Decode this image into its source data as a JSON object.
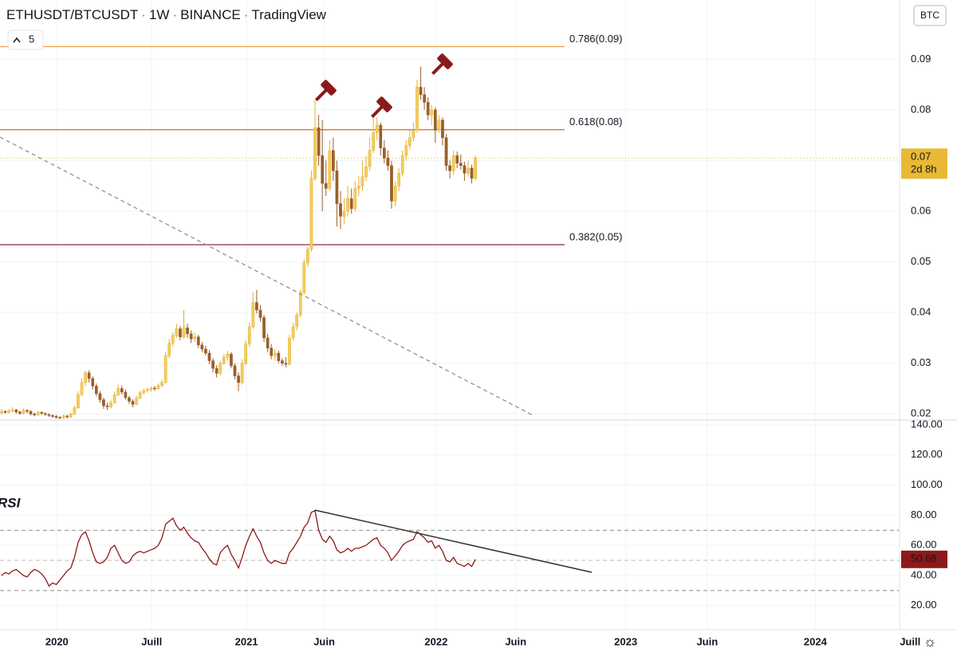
{
  "header": {
    "symbol": "ETHUSDT/BTCUSDT",
    "interval": "1W",
    "exchange": "BINANCE",
    "source": "TradingView",
    "legend_count": "5",
    "currency": "BTC",
    "price_label": "0.07",
    "countdown": "2d 8h"
  },
  "chart_data": [
    {
      "type": "candlestick",
      "up_color": "#f5cd5c",
      "down_color": "#9a5f2c",
      "ylim": [
        0.0191,
        0.1017
      ],
      "yticks": [
        0.02,
        0.03,
        0.04,
        0.05,
        0.06,
        0.07,
        0.08,
        0.09
      ],
      "xlim": [
        2019.7,
        2024.6
      ],
      "xticks": [
        {
          "value": 2020,
          "label": "2020"
        },
        {
          "value": 2020.5,
          "label": "Juill"
        },
        {
          "value": 2021,
          "label": "2021"
        },
        {
          "value": 2021.41,
          "label": "Juin"
        },
        {
          "value": 2022,
          "label": "2022"
        },
        {
          "value": 2022.42,
          "label": "Juin"
        },
        {
          "value": 2023,
          "label": "2023"
        },
        {
          "value": 2023.43,
          "label": "Juin"
        },
        {
          "value": 2024,
          "label": "2024"
        },
        {
          "value": 2024.5,
          "label": "Juill"
        }
      ],
      "levels": [
        {
          "label": "0.786(0.09)",
          "value": 0.0925,
          "color": "#f7a04b"
        },
        {
          "label": "0.618(0.08)",
          "value": 0.0761,
          "color": "#e8701a"
        },
        {
          "label": "0.382(0.05)",
          "value": 0.0534,
          "color": "#8b2c3a"
        }
      ],
      "last_value": 0.0705,
      "candles": [
        [
          0.0202,
          0.021,
          0.0199,
          0.0205
        ],
        [
          0.0205,
          0.0207,
          0.02,
          0.0203
        ],
        [
          0.0203,
          0.021,
          0.0201,
          0.0206
        ],
        [
          0.0206,
          0.0213,
          0.0203,
          0.0208
        ],
        [
          0.0208,
          0.021,
          0.02,
          0.0204
        ],
        [
          0.0204,
          0.0206,
          0.0198,
          0.0201
        ],
        [
          0.0201,
          0.0211,
          0.0199,
          0.0207
        ],
        [
          0.0207,
          0.0209,
          0.0201,
          0.0205
        ],
        [
          0.0205,
          0.0207,
          0.0197,
          0.02
        ],
        [
          0.02,
          0.0203,
          0.0195,
          0.0198
        ],
        [
          0.0198,
          0.0206,
          0.0196,
          0.0203
        ],
        [
          0.0203,
          0.0205,
          0.0198,
          0.0201
        ],
        [
          0.0201,
          0.0203,
          0.0196,
          0.0199
        ],
        [
          0.0199,
          0.0201,
          0.0194,
          0.0197
        ],
        [
          0.0197,
          0.0199,
          0.0192,
          0.0195
        ],
        [
          0.0195,
          0.0198,
          0.0191,
          0.0193
        ],
        [
          0.0193,
          0.0196,
          0.019,
          0.0192
        ],
        [
          0.0192,
          0.0199,
          0.019,
          0.0196
        ],
        [
          0.0196,
          0.0198,
          0.0191,
          0.0194
        ],
        [
          0.0194,
          0.0203,
          0.0192,
          0.02
        ],
        [
          0.02,
          0.0216,
          0.0198,
          0.0212
        ],
        [
          0.0212,
          0.0245,
          0.021,
          0.0238
        ],
        [
          0.0238,
          0.027,
          0.0235,
          0.0262
        ],
        [
          0.0262,
          0.0285,
          0.0255,
          0.0281
        ],
        [
          0.0281,
          0.0286,
          0.0262,
          0.027
        ],
        [
          0.027,
          0.0274,
          0.0248,
          0.0255
        ],
        [
          0.0255,
          0.026,
          0.0235,
          0.024
        ],
        [
          0.024,
          0.0245,
          0.0222,
          0.0228
        ],
        [
          0.0228,
          0.0232,
          0.021,
          0.0216
        ],
        [
          0.0216,
          0.0222,
          0.0208,
          0.0214
        ],
        [
          0.0214,
          0.0228,
          0.0211,
          0.0222
        ],
        [
          0.0222,
          0.0244,
          0.022,
          0.0238
        ],
        [
          0.0238,
          0.0258,
          0.0235,
          0.025
        ],
        [
          0.025,
          0.0256,
          0.0238,
          0.0243
        ],
        [
          0.0243,
          0.0248,
          0.0228,
          0.0232
        ],
        [
          0.0232,
          0.0236,
          0.022,
          0.0225
        ],
        [
          0.0225,
          0.0229,
          0.0213,
          0.0219
        ],
        [
          0.0219,
          0.0236,
          0.0217,
          0.0231
        ],
        [
          0.0231,
          0.0246,
          0.0229,
          0.0242
        ],
        [
          0.0242,
          0.025,
          0.0238,
          0.0246
        ],
        [
          0.0246,
          0.0252,
          0.0242,
          0.0248
        ],
        [
          0.0248,
          0.0254,
          0.0244,
          0.0251
        ],
        [
          0.0251,
          0.0255,
          0.0245,
          0.025
        ],
        [
          0.025,
          0.026,
          0.0248,
          0.0256
        ],
        [
          0.0256,
          0.0268,
          0.0253,
          0.0262
        ],
        [
          0.0262,
          0.0322,
          0.026,
          0.0315
        ],
        [
          0.0315,
          0.0348,
          0.031,
          0.034
        ],
        [
          0.034,
          0.0362,
          0.0332,
          0.0355
        ],
        [
          0.0355,
          0.0378,
          0.035,
          0.0368
        ],
        [
          0.0368,
          0.0374,
          0.0345,
          0.0352
        ],
        [
          0.0352,
          0.0405,
          0.0348,
          0.037
        ],
        [
          0.037,
          0.0378,
          0.035,
          0.0358
        ],
        [
          0.0358,
          0.0365,
          0.034,
          0.0348
        ],
        [
          0.0348,
          0.036,
          0.0342,
          0.0352
        ],
        [
          0.0352,
          0.0356,
          0.033,
          0.0336
        ],
        [
          0.0336,
          0.0342,
          0.0322,
          0.0328
        ],
        [
          0.0328,
          0.0335,
          0.0315,
          0.032
        ],
        [
          0.032,
          0.0326,
          0.0298,
          0.0305
        ],
        [
          0.0305,
          0.031,
          0.0282,
          0.029
        ],
        [
          0.029,
          0.0296,
          0.0272,
          0.028
        ],
        [
          0.028,
          0.0305,
          0.0276,
          0.03
        ],
        [
          0.03,
          0.0318,
          0.0296,
          0.0312
        ],
        [
          0.0312,
          0.0325,
          0.0305,
          0.0318
        ],
        [
          0.0318,
          0.0322,
          0.029,
          0.0295
        ],
        [
          0.0295,
          0.03,
          0.0268,
          0.0275
        ],
        [
          0.0275,
          0.0282,
          0.0245,
          0.0262
        ],
        [
          0.0262,
          0.0308,
          0.0258,
          0.03
        ],
        [
          0.03,
          0.0345,
          0.0296,
          0.0338
        ],
        [
          0.0338,
          0.038,
          0.0332,
          0.0372
        ],
        [
          0.0372,
          0.044,
          0.0368,
          0.042
        ],
        [
          0.042,
          0.0445,
          0.0398,
          0.0405
        ],
        [
          0.0405,
          0.0415,
          0.0382,
          0.039
        ],
        [
          0.039,
          0.0395,
          0.0342,
          0.035
        ],
        [
          0.035,
          0.0358,
          0.0322,
          0.033
        ],
        [
          0.033,
          0.0338,
          0.0308,
          0.0315
        ],
        [
          0.0315,
          0.0328,
          0.0305,
          0.032
        ],
        [
          0.032,
          0.0325,
          0.03,
          0.0305
        ],
        [
          0.0305,
          0.031,
          0.0295,
          0.03
        ],
        [
          0.03,
          0.0312,
          0.0292,
          0.0298
        ],
        [
          0.0298,
          0.0356,
          0.0296,
          0.035
        ],
        [
          0.035,
          0.038,
          0.0345,
          0.0372
        ],
        [
          0.0372,
          0.04,
          0.0365,
          0.0395
        ],
        [
          0.0395,
          0.0446,
          0.039,
          0.044
        ],
        [
          0.044,
          0.0505,
          0.0435,
          0.0498
        ],
        [
          0.0498,
          0.053,
          0.049,
          0.0525
        ],
        [
          0.0525,
          0.068,
          0.052,
          0.0665
        ],
        [
          0.0665,
          0.082,
          0.066,
          0.0765
        ],
        [
          0.0765,
          0.079,
          0.069,
          0.071
        ],
        [
          0.071,
          0.078,
          0.06,
          0.0655
        ],
        [
          0.0655,
          0.07,
          0.063,
          0.0645
        ],
        [
          0.0645,
          0.074,
          0.064,
          0.072
        ],
        [
          0.072,
          0.0745,
          0.066,
          0.068
        ],
        [
          0.068,
          0.07,
          0.057,
          0.0615
        ],
        [
          0.0615,
          0.064,
          0.0565,
          0.059
        ],
        [
          0.059,
          0.0625,
          0.0575,
          0.06
        ],
        [
          0.06,
          0.065,
          0.059,
          0.0625
        ],
        [
          0.0625,
          0.0645,
          0.0595,
          0.0605
        ],
        [
          0.0605,
          0.066,
          0.06,
          0.0645
        ],
        [
          0.0645,
          0.067,
          0.063,
          0.065
        ],
        [
          0.065,
          0.07,
          0.064,
          0.0668
        ],
        [
          0.0668,
          0.071,
          0.066,
          0.0688
        ],
        [
          0.0688,
          0.0745,
          0.068,
          0.072
        ],
        [
          0.072,
          0.079,
          0.0715,
          0.0755
        ],
        [
          0.0755,
          0.0785,
          0.074,
          0.077
        ],
        [
          0.077,
          0.0775,
          0.071,
          0.0725
        ],
        [
          0.0725,
          0.074,
          0.0695,
          0.0705
        ],
        [
          0.0705,
          0.072,
          0.068,
          0.069
        ],
        [
          0.069,
          0.07,
          0.0605,
          0.062
        ],
        [
          0.062,
          0.066,
          0.061,
          0.065
        ],
        [
          0.065,
          0.0685,
          0.064,
          0.0675
        ],
        [
          0.0675,
          0.072,
          0.0668,
          0.071
        ],
        [
          0.071,
          0.074,
          0.07,
          0.073
        ],
        [
          0.073,
          0.076,
          0.0722,
          0.0745
        ],
        [
          0.0745,
          0.0775,
          0.0738,
          0.076
        ],
        [
          0.076,
          0.086,
          0.0755,
          0.0845
        ],
        [
          0.0845,
          0.0885,
          0.082,
          0.083
        ],
        [
          0.083,
          0.0845,
          0.08,
          0.0815
        ],
        [
          0.0815,
          0.0825,
          0.078,
          0.079
        ],
        [
          0.079,
          0.081,
          0.077,
          0.08
        ],
        [
          0.08,
          0.0805,
          0.0735,
          0.076
        ],
        [
          0.076,
          0.079,
          0.0755,
          0.078
        ],
        [
          0.078,
          0.0785,
          0.073,
          0.0745
        ],
        [
          0.0745,
          0.0752,
          0.068,
          0.069
        ],
        [
          0.069,
          0.07,
          0.0665,
          0.068
        ],
        [
          0.068,
          0.072,
          0.0672,
          0.071
        ],
        [
          0.071,
          0.0718,
          0.0685,
          0.0695
        ],
        [
          0.0695,
          0.0712,
          0.0682,
          0.069
        ],
        [
          0.069,
          0.0698,
          0.066,
          0.0675
        ],
        [
          0.0675,
          0.07,
          0.0668,
          0.0685
        ],
        [
          0.0685,
          0.0692,
          0.0655,
          0.0665
        ],
        [
          0.0665,
          0.071,
          0.066,
          0.0705
        ]
      ]
    },
    {
      "type": "line",
      "label": "RSI",
      "color": "#8b1a1a",
      "ylim": [
        4,
        144.2
      ],
      "yticks": [
        {
          "value": 20,
          "label": "20.00"
        },
        {
          "value": 40,
          "label": "40.00"
        },
        {
          "value": 60,
          "label": "60.00"
        },
        {
          "value": 80,
          "label": "80.00"
        },
        {
          "value": 100,
          "label": "100.00"
        },
        {
          "value": 120,
          "label": "120.00"
        },
        {
          "value": 140,
          "label": "140.00"
        }
      ],
      "levels": [
        70,
        50,
        30
      ],
      "values": [
        40,
        42,
        41,
        43,
        44,
        42,
        40,
        39,
        42,
        44,
        43,
        41,
        38,
        33,
        35,
        34,
        37,
        40,
        43,
        45,
        52,
        62,
        67,
        69,
        63,
        55,
        49,
        48,
        49,
        52,
        58,
        60,
        55,
        50,
        48,
        49,
        53,
        55,
        56,
        55,
        56,
        57,
        58,
        60,
        65,
        74,
        76,
        78,
        73,
        70,
        72,
        68,
        65,
        63,
        62,
        58,
        55,
        51,
        48,
        47,
        55,
        58,
        60,
        54,
        50,
        45,
        52,
        60,
        66,
        71,
        66,
        62,
        55,
        50,
        48,
        50,
        49,
        48,
        48,
        55,
        58,
        62,
        66,
        72,
        75,
        82,
        83,
        70,
        64,
        62,
        66,
        63,
        57,
        55,
        56,
        58,
        56,
        58,
        58,
        59,
        60,
        62,
        64,
        65,
        60,
        58,
        55,
        50,
        53,
        56,
        60,
        62,
        63,
        64,
        69,
        67,
        65,
        62,
        63,
        58,
        60,
        56,
        50,
        49,
        52,
        48,
        47,
        46,
        48,
        46,
        50.68
      ]
    }
  ]
}
